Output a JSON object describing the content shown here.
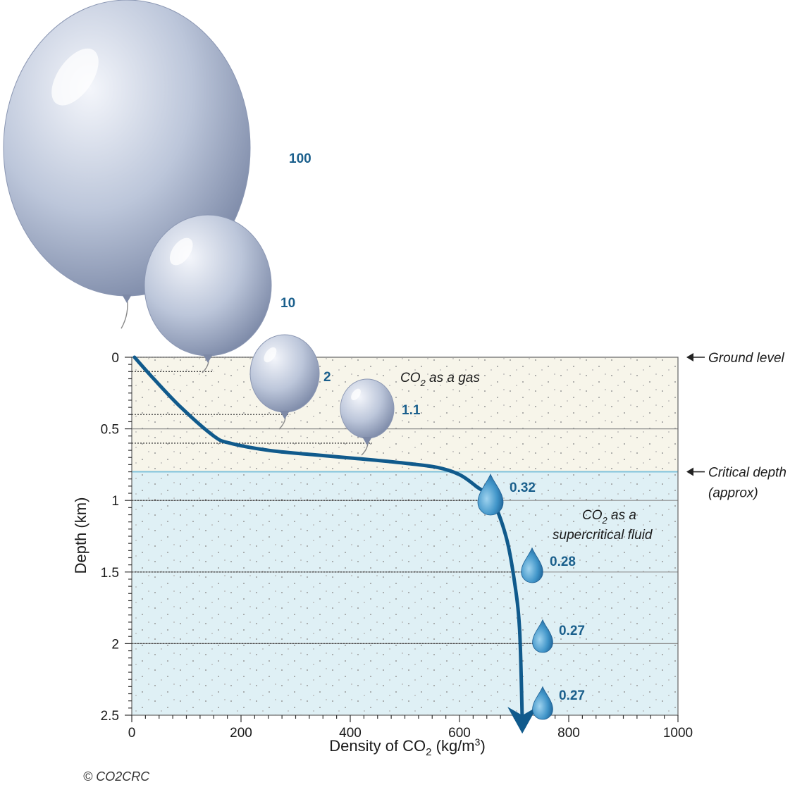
{
  "chart_data": {
    "type": "line",
    "title": "",
    "xlabel": "Density of CO2 (kg/m3)",
    "ylabel": "Depth (km)",
    "xlim": [
      0,
      1000
    ],
    "ylim": [
      2.5,
      0
    ],
    "x_ticks": [
      "0",
      "200",
      "400",
      "600",
      "800",
      "1000"
    ],
    "y_ticks": [
      "0",
      "0.5",
      "1",
      "1.5",
      "2",
      "2.5"
    ],
    "curve": {
      "x": [
        5,
        40,
        90,
        150,
        180,
        250,
        330,
        420,
        500,
        560,
        600,
        630,
        660,
        685,
        700,
        710,
        715
      ],
      "y": [
        0.0,
        0.15,
        0.35,
        0.55,
        0.6,
        0.65,
        0.68,
        0.71,
        0.74,
        0.77,
        0.82,
        0.9,
        1.0,
        1.25,
        1.55,
        1.9,
        2.55
      ]
    },
    "balloons": [
      {
        "label": "100",
        "depth": 0.0,
        "density": 5
      },
      {
        "label": "10",
        "depth": 0.1,
        "density": 140
      },
      {
        "label": "2",
        "depth": 0.4,
        "density": 280
      },
      {
        "label": "1.1",
        "depth": 0.6,
        "density": 430
      }
    ],
    "droplets": [
      {
        "label": "0.32",
        "depth": 1.0,
        "density": 660
      },
      {
        "label": "0.28",
        "depth": 1.5,
        "density": 735
      },
      {
        "label": "0.27",
        "depth": 2.0,
        "density": 750
      },
      {
        "label": "0.27",
        "depth": 2.5,
        "density": 750
      }
    ],
    "annotations": {
      "gas_line1": "CO",
      "gas_sub": "2",
      "gas_line2": "as a gas",
      "fluid_line1": "CO",
      "fluid_sub": "2",
      "fluid_line2": "as a",
      "fluid_line3": "supercritical fluid",
      "ground_level": "Ground level",
      "critical_depth": "Critical depth",
      "critical_depth2": "(approx)"
    },
    "critical_depth_km": 0.8,
    "colors": {
      "gas_zone": "#f7f5ea",
      "fluid_zone": "#dff0f5",
      "curve": "#105a8c",
      "label": "#1a5f8c",
      "balloon": "#b8c2d6"
    }
  },
  "footer": {
    "copyright": "© CO2CRC"
  }
}
